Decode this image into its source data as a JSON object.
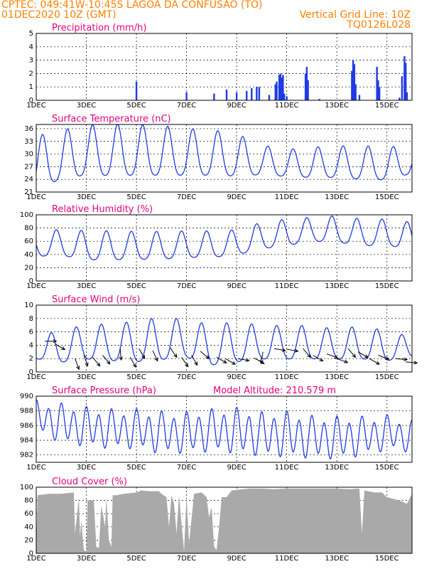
{
  "header": {
    "station": "CPTEC:   049:41W-10:45S   LAGOA DA CONFUSAO (TO)",
    "run": "01DEC2020 10Z (GMT)",
    "grid_note": "Vertical Grid Line: 10Z",
    "model": "TQ0126L028"
  },
  "colors": {
    "header": "#ff7f00",
    "panel_title": "#e6007e",
    "series": "#1f3be6",
    "cloud": "#a9a9a9",
    "arrow": "#000000"
  },
  "chart_data": [
    {
      "id": "precip",
      "type": "bar",
      "title": "Precipitation (mm/h)",
      "ylim": [
        0,
        5
      ],
      "yticks": [
        "0",
        "1",
        "2",
        "3",
        "4",
        "5"
      ],
      "xticks": [
        "1DEC",
        "3DEC",
        "5DEC",
        "7DEC",
        "9DEC",
        "11DEC",
        "13DEC",
        "15DEC"
      ],
      "x_unit_days": [
        0,
        15
      ],
      "bars": [
        [
          4.0,
          1.4
        ],
        [
          6.0,
          0.6
        ],
        [
          7.1,
          0.5
        ],
        [
          7.6,
          0.8
        ],
        [
          8.0,
          0.6
        ],
        [
          8.4,
          0.7
        ],
        [
          8.6,
          0.9
        ],
        [
          8.8,
          1.0
        ],
        [
          8.9,
          1.0
        ],
        [
          9.3,
          0.4
        ],
        [
          9.55,
          1.2
        ],
        [
          9.6,
          1.4
        ],
        [
          9.7,
          1.9
        ],
        [
          9.75,
          2.0
        ],
        [
          9.8,
          1.7
        ],
        [
          9.85,
          1.9
        ],
        [
          9.9,
          0.5
        ],
        [
          10.0,
          0.3
        ],
        [
          10.75,
          2.0
        ],
        [
          10.8,
          2.5
        ],
        [
          10.85,
          1.5
        ],
        [
          11.3,
          0.1
        ],
        [
          12.6,
          2.2
        ],
        [
          12.65,
          3.0
        ],
        [
          12.7,
          2.7
        ],
        [
          12.75,
          1.2
        ],
        [
          12.9,
          0.4
        ],
        [
          13.6,
          2.5
        ],
        [
          13.65,
          1.5
        ],
        [
          13.7,
          1.0
        ],
        [
          14.5,
          0.2
        ],
        [
          14.6,
          1.8
        ],
        [
          14.7,
          3.3
        ],
        [
          14.75,
          2.8
        ],
        [
          14.8,
          0.6
        ]
      ]
    },
    {
      "id": "temp",
      "type": "line",
      "title": "Surface Temperature (nC)",
      "ylim": [
        21,
        37
      ],
      "yticks": [
        "21",
        "24",
        "27",
        "30",
        "33",
        "36"
      ],
      "xticks": [
        "1DEC",
        "3DEC",
        "5DEC",
        "7DEC",
        "9DEC",
        "11DEC",
        "13DEC",
        "15DEC"
      ],
      "x_unit_days": [
        0,
        15
      ],
      "series": [
        {
          "amp": [
            6.2,
            5.8,
            5.9,
            6.1,
            6.0,
            5.9,
            5.5,
            5.4,
            5.0,
            3.5,
            3.2,
            3.6,
            3.7,
            4.0,
            3.8,
            3.6
          ],
          "mean": [
            27.0,
            28.8,
            29.9,
            29.9,
            29.9,
            29.8,
            29.5,
            29.4,
            28.9,
            28.0,
            27.3,
            27.4,
            27.5,
            27.3,
            27.0,
            28.4
          ],
          "peak_phase": 0.25
        }
      ]
    },
    {
      "id": "rh",
      "type": "line",
      "title": "Relative Humidity (%)",
      "ylim": [
        0,
        100
      ],
      "yticks": [
        "0",
        "20",
        "40",
        "60",
        "80",
        "100"
      ],
      "xticks": [
        "1DEC",
        "3DEC",
        "5DEC",
        "7DEC",
        "9DEC",
        "11DEC",
        "13DEC",
        "15DEC"
      ],
      "x_unit_days": [
        0,
        15
      ],
      "series": [
        {
          "amp": [
            18,
            20,
            22,
            22,
            21,
            21,
            20,
            20,
            19,
            20,
            20,
            18,
            20,
            20,
            20,
            20
          ],
          "mean": [
            52,
            55,
            50,
            50,
            50,
            50,
            52,
            52,
            55,
            65,
            70,
            75,
            75,
            70,
            70,
            65
          ],
          "peak_phase": 0.8
        }
      ]
    },
    {
      "id": "wind",
      "type": "line",
      "title": "Surface Wind (m/s)",
      "ylim": [
        0,
        10
      ],
      "yticks": [
        "0",
        "2",
        "4",
        "6",
        "8",
        "10"
      ],
      "xticks": [
        "1DEC",
        "3DEC",
        "5DEC",
        "7DEC",
        "9DEC",
        "11DEC",
        "13DEC",
        "15DEC"
      ],
      "x_unit_days": [
        0,
        15
      ],
      "series": [
        {
          "amp": [
            1.5,
            2.5,
            2.5,
            2.8,
            3.0,
            3.2,
            2.8,
            3.0,
            3.0,
            2.5,
            2.5,
            2.5,
            2.2,
            2.5,
            2.2,
            1.5
          ],
          "mean": [
            3.2,
            3.5,
            4.0,
            4.0,
            4.0,
            4.5,
            4.5,
            3.5,
            4.0,
            4.0,
            4.0,
            4.0,
            3.8,
            4.0,
            3.5,
            3.5
          ],
          "peak_phase": 0.6
        }
      ],
      "arrows": [
        [
          0.35,
          4.6,
          270
        ],
        [
          0.75,
          4.2,
          300
        ],
        [
          1.55,
          2.0,
          340
        ],
        [
          1.9,
          2.5,
          340
        ],
        [
          2.25,
          2.2,
          320
        ],
        [
          2.65,
          2.5,
          320
        ],
        [
          3.35,
          3.5,
          355
        ],
        [
          3.75,
          2.2,
          330
        ],
        [
          4.1,
          3.5,
          330
        ],
        [
          4.65,
          3.2,
          335
        ],
        [
          5.35,
          3.6,
          325
        ],
        [
          5.8,
          2.2,
          325
        ],
        [
          6.2,
          2.5,
          330
        ],
        [
          6.55,
          3.1,
          310
        ],
        [
          7.2,
          2.2,
          300
        ],
        [
          7.55,
          2.0,
          300
        ],
        [
          8.05,
          2.0,
          280
        ],
        [
          8.7,
          2.1,
          300
        ],
        [
          9.05,
          3.0,
          10
        ],
        [
          9.5,
          3.5,
          280
        ],
        [
          10.0,
          3.4,
          280
        ],
        [
          10.65,
          3.5,
          320
        ],
        [
          11.05,
          2.5,
          300
        ],
        [
          11.6,
          2.7,
          290
        ],
        [
          12.0,
          2.0,
          290
        ],
        [
          12.45,
          3.5,
          320
        ],
        [
          12.85,
          3.0,
          300
        ],
        [
          13.3,
          2.0,
          300
        ],
        [
          13.65,
          2.5,
          290
        ],
        [
          14.35,
          2.0,
          275
        ],
        [
          14.75,
          1.5,
          275
        ]
      ]
    },
    {
      "id": "pres",
      "type": "line",
      "title": "Surface Pressure (hPa)",
      "annotation": "Model Altitude: 210.579  m",
      "ylim": [
        981,
        990
      ],
      "yticks": [
        "982",
        "984",
        "986",
        "988",
        "990"
      ],
      "xticks": [
        "1DEC",
        "3DEC",
        "5DEC",
        "7DEC",
        "9DEC",
        "11DEC",
        "13DEC",
        "15DEC"
      ],
      "x_unit_days": [
        0,
        15
      ],
      "series": [
        {
          "semi_amp": [
            1.8,
            2.3,
            2.3,
            2.3,
            2.3,
            2.5,
            2.4,
            2.5,
            2.7,
            2.6,
            2.7,
            2.5,
            2.5,
            2.3,
            2.0,
            1.8
          ],
          "mean": [
            987.2,
            986.3,
            985.8,
            985.5,
            985.5,
            985.0,
            985.0,
            985.3,
            985.3,
            984.8,
            984.8,
            984.4,
            984.3,
            984.5,
            985.0,
            984.5
          ],
          "peak_phase": 0.0
        }
      ]
    },
    {
      "id": "cloud",
      "type": "area",
      "title": "Cloud Cover (%)",
      "ylim": [
        0,
        100
      ],
      "yticks": [
        "0",
        "20",
        "40",
        "60",
        "80",
        "100"
      ],
      "xticks": [
        "1DEC",
        "3DEC",
        "5DEC",
        "7DEC",
        "9DEC",
        "11DEC",
        "13DEC",
        "15DEC"
      ],
      "x_unit_days": [
        0,
        15
      ],
      "points": [
        [
          0.0,
          12
        ],
        [
          0.05,
          88
        ],
        [
          0.5,
          90
        ],
        [
          1.0,
          90
        ],
        [
          1.5,
          92
        ],
        [
          1.55,
          30
        ],
        [
          1.7,
          85
        ],
        [
          1.75,
          25
        ],
        [
          1.8,
          50
        ],
        [
          1.9,
          5
        ],
        [
          2.0,
          3
        ],
        [
          2.05,
          80
        ],
        [
          2.3,
          80
        ],
        [
          2.4,
          10
        ],
        [
          2.5,
          8
        ],
        [
          2.6,
          72
        ],
        [
          2.75,
          40
        ],
        [
          2.8,
          85
        ],
        [
          2.9,
          20
        ],
        [
          3.0,
          10
        ],
        [
          3.05,
          88
        ],
        [
          3.2,
          88
        ],
        [
          3.5,
          90
        ],
        [
          4.0,
          92
        ],
        [
          4.2,
          95
        ],
        [
          4.5,
          94
        ],
        [
          4.9,
          94
        ],
        [
          5.0,
          90
        ],
        [
          5.2,
          85
        ],
        [
          5.3,
          40
        ],
        [
          5.4,
          88
        ],
        [
          5.5,
          75
        ],
        [
          5.6,
          30
        ],
        [
          5.7,
          88
        ],
        [
          5.9,
          3
        ],
        [
          6.0,
          88
        ],
        [
          6.1,
          15
        ],
        [
          6.3,
          90
        ],
        [
          6.6,
          92
        ],
        [
          6.8,
          85
        ],
        [
          6.9,
          55
        ],
        [
          7.0,
          70
        ],
        [
          7.1,
          10
        ],
        [
          7.2,
          5
        ],
        [
          7.3,
          40
        ],
        [
          7.4,
          85
        ],
        [
          7.6,
          85
        ],
        [
          7.8,
          95
        ],
        [
          8.0,
          96
        ],
        [
          8.5,
          98
        ],
        [
          9.0,
          98
        ],
        [
          9.5,
          97
        ],
        [
          10.0,
          98
        ],
        [
          10.5,
          98
        ],
        [
          11.0,
          98
        ],
        [
          11.5,
          98
        ],
        [
          12.0,
          98
        ],
        [
          12.5,
          97
        ],
        [
          12.9,
          98
        ],
        [
          13.0,
          30
        ],
        [
          13.1,
          95
        ],
        [
          13.5,
          92
        ],
        [
          13.8,
          92
        ],
        [
          14.0,
          85
        ],
        [
          14.5,
          80
        ],
        [
          14.8,
          75
        ],
        [
          15.0,
          90
        ]
      ]
    }
  ]
}
